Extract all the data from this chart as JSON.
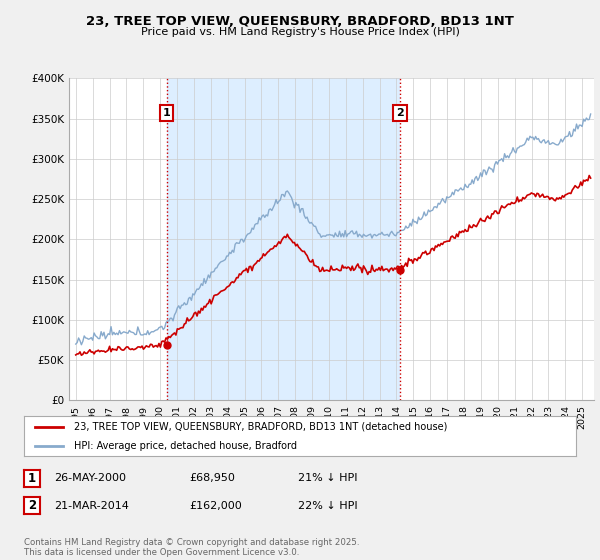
{
  "title": "23, TREE TOP VIEW, QUEENSBURY, BRADFORD, BD13 1NT",
  "subtitle": "Price paid vs. HM Land Registry's House Price Index (HPI)",
  "legend_property": "23, TREE TOP VIEW, QUEENSBURY, BRADFORD, BD13 1NT (detached house)",
  "legend_hpi": "HPI: Average price, detached house, Bradford",
  "footer": "Contains HM Land Registry data © Crown copyright and database right 2025.\nThis data is licensed under the Open Government Licence v3.0.",
  "sale1_date": "26-MAY-2000",
  "sale1_price": "£68,950",
  "sale1_hpi": "21% ↓ HPI",
  "sale2_date": "21-MAR-2014",
  "sale2_price": "£162,000",
  "sale2_hpi": "22% ↓ HPI",
  "ylim": [
    0,
    400000
  ],
  "yticks": [
    0,
    50000,
    100000,
    150000,
    200000,
    250000,
    300000,
    350000,
    400000
  ],
  "ytick_labels": [
    "£0",
    "£50K",
    "£100K",
    "£150K",
    "£200K",
    "£250K",
    "£300K",
    "£350K",
    "£400K"
  ],
  "property_color": "#cc0000",
  "hpi_color": "#88aacc",
  "shade_color": "#ddeeff",
  "vline_color": "#cc0000",
  "background_color": "#f0f0f0",
  "plot_bg_color": "#ffffff",
  "sale1_x": 2000.38,
  "sale1_y": 68950,
  "sale2_x": 2014.21,
  "sale2_y": 162000,
  "xlim_left": 1994.6,
  "xlim_right": 2025.7
}
